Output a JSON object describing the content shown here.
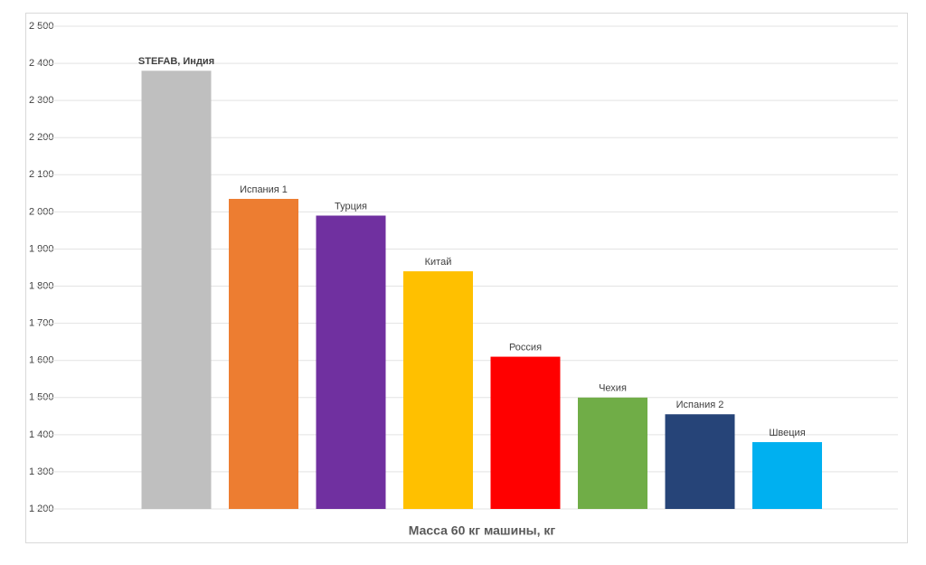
{
  "chart_data": {
    "type": "bar",
    "x_label": "Масса 60 кг машины, кг",
    "categories": [
      "STEFAB, Индия",
      "Испания 1",
      "Турция",
      "Китай",
      "Россия",
      "Чехия",
      "Испания 2",
      "Швеция"
    ],
    "values": [
      2380,
      2035,
      1990,
      1840,
      1610,
      1500,
      1455,
      1380
    ],
    "colors": [
      "#bfbfbf",
      "#ed7d31",
      "#7030a0",
      "#ffc000",
      "#ff0000",
      "#70ad47",
      "#264478",
      "#00b0f0"
    ],
    "ylim": [
      1200,
      2500
    ],
    "yticks": [
      {
        "value": 1200,
        "label": "1 200"
      },
      {
        "value": 1300,
        "label": "1 300"
      },
      {
        "value": 1400,
        "label": "1 400"
      },
      {
        "value": 1500,
        "label": "1 500"
      },
      {
        "value": 1600,
        "label": "1 600"
      },
      {
        "value": 1700,
        "label": "1 700"
      },
      {
        "value": 1800,
        "label": "1 800"
      },
      {
        "value": 1900,
        "label": "1 900"
      },
      {
        "value": 2000,
        "label": "2 000"
      },
      {
        "value": 2100,
        "label": "2 100"
      },
      {
        "value": 2200,
        "label": "2 200"
      },
      {
        "value": 2300,
        "label": "2 300"
      },
      {
        "value": 2400,
        "label": "2 400"
      },
      {
        "value": 2500,
        "label": "2 500"
      }
    ],
    "grid": true
  }
}
